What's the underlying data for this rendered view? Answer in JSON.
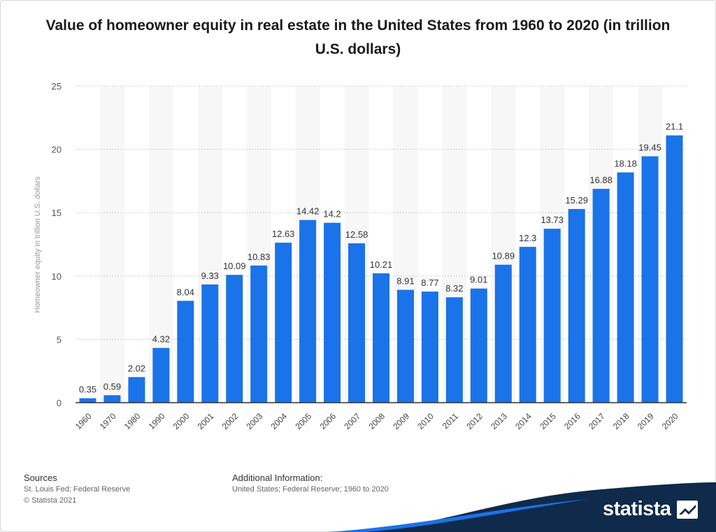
{
  "chart_data": {
    "type": "bar",
    "title": "Value of homeowner equity in real estate in the United States from 1960 to 2020 (in trillion U.S. dollars)",
    "xlabel": "",
    "ylabel": "Homeowner equity in trillion U.S. dollars",
    "ylim": [
      0,
      25
    ],
    "yticks": [
      0,
      5,
      10,
      15,
      20,
      25
    ],
    "grid": true,
    "bar_color": "#1a73e8",
    "categories": [
      "1960",
      "1970",
      "1980",
      "1990",
      "2000",
      "2001",
      "2002",
      "2003",
      "2004",
      "2005",
      "2006",
      "2007",
      "2008",
      "2009",
      "2010",
      "2011",
      "2012",
      "2013",
      "2014",
      "2015",
      "2016",
      "2017",
      "2018",
      "2019",
      "2020"
    ],
    "values": [
      0.35,
      0.59,
      2.02,
      4.32,
      8.04,
      9.33,
      10.09,
      10.83,
      12.63,
      14.42,
      14.2,
      12.58,
      10.21,
      8.91,
      8.77,
      8.32,
      9.01,
      10.89,
      12.3,
      13.73,
      15.29,
      16.88,
      18.18,
      19.45,
      21.1
    ]
  },
  "footer": {
    "sources_heading": "Sources",
    "sources_text": "St. Louis Fed; Federal Reserve",
    "copyright": "© Statista 2021",
    "additional_heading": "Additional Information:",
    "additional_text": "United States; Federal Reserve; 1960 to 2020"
  },
  "brand": {
    "name": "statista",
    "icon": "statista-logo-icon",
    "color": "#0f2a4a"
  }
}
